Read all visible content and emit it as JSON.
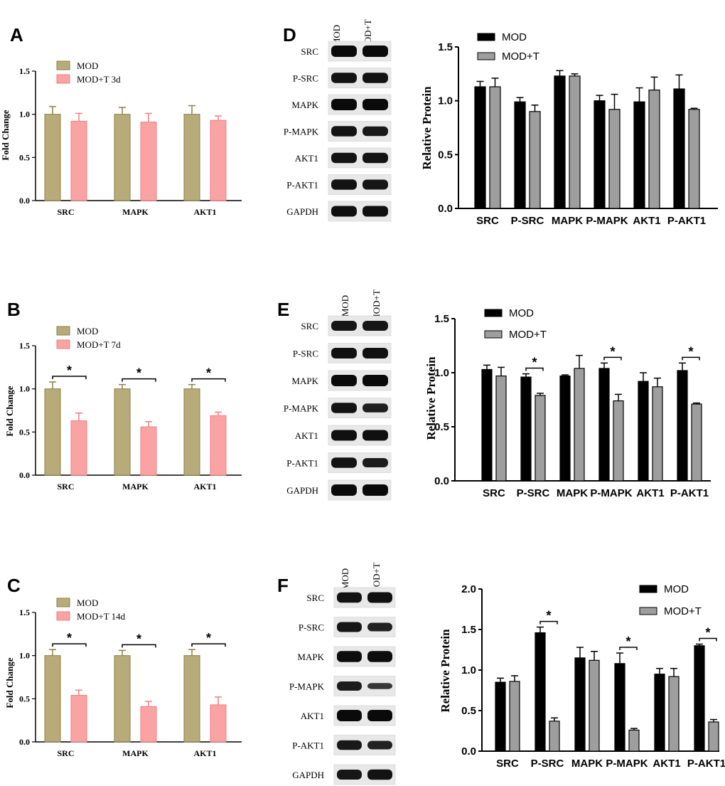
{
  "figure": {
    "panel_letters": [
      "A",
      "B",
      "C",
      "D",
      "E",
      "F"
    ]
  },
  "colors": {
    "mod_rt": "#b7ab79",
    "mod_rt_edge": "#8e7f45",
    "modt_rt": "#f9a3a3",
    "modt_rt_edge": "#ef7f7f",
    "mod_wb": "#000000",
    "modt_wb": "#9e9e9e"
  },
  "blots": [
    {
      "panel": "D",
      "lane_labels": [
        "MOD",
        "MOD+T"
      ],
      "row_labels": [
        "SRC",
        "P-SRC",
        "MAPK",
        "P-MAPK",
        "AKT1",
        "P-AKT1",
        "GAPDH"
      ]
    },
    {
      "panel": "E",
      "lane_labels": [
        "MOD",
        "MOD+T"
      ],
      "row_labels": [
        "SRC",
        "P-SRC",
        "MAPK",
        "P-MAPK",
        "AKT1",
        "P-AKT1",
        "GAPDH"
      ]
    },
    {
      "panel": "F",
      "lane_labels": [
        "MOD",
        "MOD+T"
      ],
      "row_labels": [
        "SRC",
        "P-SRC",
        "MAPK",
        "P-MAPK",
        "AKT1",
        "P-AKT1",
        "GAPDH"
      ]
    }
  ],
  "chart_data": [
    {
      "panel": "A",
      "type": "bar",
      "title": "",
      "xlabel": "",
      "ylabel": "Fold Change",
      "ylim": [
        0,
        1.5
      ],
      "yticks": [
        "0.0",
        "0.5",
        "1.0",
        "1.5"
      ],
      "categories": [
        "SRC",
        "MAPK",
        "AKT1"
      ],
      "series": [
        {
          "name": "MOD",
          "values": [
            1.0,
            1.0,
            1.0
          ],
          "errors": [
            0.09,
            0.08,
            0.1
          ]
        },
        {
          "name": "MOD+T 3d",
          "values": [
            0.92,
            0.91,
            0.93
          ],
          "errors": [
            0.09,
            0.1,
            0.05
          ]
        }
      ],
      "significance": [],
      "legend": "top-left",
      "grid": false
    },
    {
      "panel": "B",
      "type": "bar",
      "title": "",
      "xlabel": "",
      "ylabel": "Fold Change",
      "ylim": [
        0,
        1.5
      ],
      "yticks": [
        "0.0",
        "0.5",
        "1.0",
        "1.5"
      ],
      "categories": [
        "SRC",
        "MAPK",
        "AKT1"
      ],
      "series": [
        {
          "name": "MOD",
          "values": [
            1.0,
            1.0,
            1.0
          ],
          "errors": [
            0.08,
            0.05,
            0.05
          ]
        },
        {
          "name": "MOD+T 7d",
          "values": [
            0.63,
            0.56,
            0.69
          ],
          "errors": [
            0.09,
            0.06,
            0.04
          ]
        }
      ],
      "significance": [
        "*",
        "*",
        "*"
      ],
      "legend": "top-left",
      "grid": false
    },
    {
      "panel": "C",
      "type": "bar",
      "title": "",
      "xlabel": "",
      "ylabel": "Fold Change",
      "ylim": [
        0,
        1.5
      ],
      "yticks": [
        "0.0",
        "0.5",
        "1.0",
        "1.5"
      ],
      "categories": [
        "SRC",
        "MAPK",
        "AKT1"
      ],
      "series": [
        {
          "name": "MOD",
          "values": [
            1.0,
            1.0,
            1.0
          ],
          "errors": [
            0.07,
            0.06,
            0.07
          ]
        },
        {
          "name": "MOD+T 14d",
          "values": [
            0.54,
            0.41,
            0.43
          ],
          "errors": [
            0.06,
            0.06,
            0.09
          ]
        }
      ],
      "significance": [
        "*",
        "*",
        "*"
      ],
      "legend": "top-left",
      "grid": false
    },
    {
      "panel": "D",
      "type": "bar",
      "title": "",
      "xlabel": "",
      "ylabel": "Relative Protein",
      "ylim": [
        0,
        1.5
      ],
      "yticks": [
        "0.0",
        "0.5",
        "1.0",
        "1.5"
      ],
      "categories": [
        "SRC",
        "P-SRC",
        "MAPK",
        "P-MAPK",
        "AKT1",
        "P-AKT1"
      ],
      "series": [
        {
          "name": "MOD",
          "values": [
            1.13,
            0.99,
            1.23,
            1.0,
            0.99,
            1.11
          ],
          "errors": [
            0.05,
            0.04,
            0.05,
            0.05,
            0.13,
            0.13
          ]
        },
        {
          "name": "MOD+T",
          "values": [
            1.13,
            0.9,
            1.23,
            0.92,
            1.1,
            0.92
          ],
          "errors": [
            0.08,
            0.06,
            0.02,
            0.14,
            0.12,
            0.01
          ]
        }
      ],
      "significance": [
        "",
        "",
        "",
        "",
        "",
        ""
      ],
      "legend": "top-left",
      "grid": false
    },
    {
      "panel": "E",
      "type": "bar",
      "title": "",
      "xlabel": "",
      "ylabel": "Relative Protein",
      "ylim": [
        0,
        1.5
      ],
      "yticks": [
        "0.0",
        "0.5",
        "1.0",
        "1.5"
      ],
      "categories": [
        "SRC",
        "P-SRC",
        "MAPK",
        "P-MAPK",
        "AKT1",
        "P-AKT1"
      ],
      "series": [
        {
          "name": "MOD",
          "values": [
            1.03,
            0.96,
            0.97,
            1.04,
            0.92,
            1.02
          ],
          "errors": [
            0.04,
            0.03,
            0.01,
            0.05,
            0.08,
            0.07
          ]
        },
        {
          "name": "MOD+T",
          "values": [
            0.97,
            0.79,
            1.04,
            0.74,
            0.87,
            0.71
          ],
          "errors": [
            0.08,
            0.02,
            0.12,
            0.06,
            0.08,
            0.01
          ]
        }
      ],
      "significance": [
        "",
        "*",
        "",
        "*",
        "",
        "*"
      ],
      "legend": "top-left",
      "grid": false
    },
    {
      "panel": "F",
      "type": "bar",
      "title": "",
      "xlabel": "",
      "ylabel": "Relative Protein",
      "ylim": [
        0,
        2.0
      ],
      "yticks": [
        "0.0",
        "0.5",
        "1.0",
        "1.5",
        "2.0"
      ],
      "categories": [
        "SRC",
        "P-SRC",
        "MAPK",
        "P-MAPK",
        "AKT1",
        "P-AKT1"
      ],
      "series": [
        {
          "name": "MOD",
          "values": [
            0.85,
            1.46,
            1.15,
            1.08,
            0.95,
            1.3
          ],
          "errors": [
            0.05,
            0.07,
            0.13,
            0.13,
            0.07,
            0.02
          ]
        },
        {
          "name": "MOD+T",
          "values": [
            0.86,
            0.37,
            1.12,
            0.26,
            0.92,
            0.36
          ],
          "errors": [
            0.07,
            0.04,
            0.11,
            0.02,
            0.1,
            0.03
          ]
        }
      ],
      "significance": [
        "",
        "*",
        "",
        "*",
        "",
        "*"
      ],
      "legend": "top-right",
      "grid": false
    }
  ]
}
